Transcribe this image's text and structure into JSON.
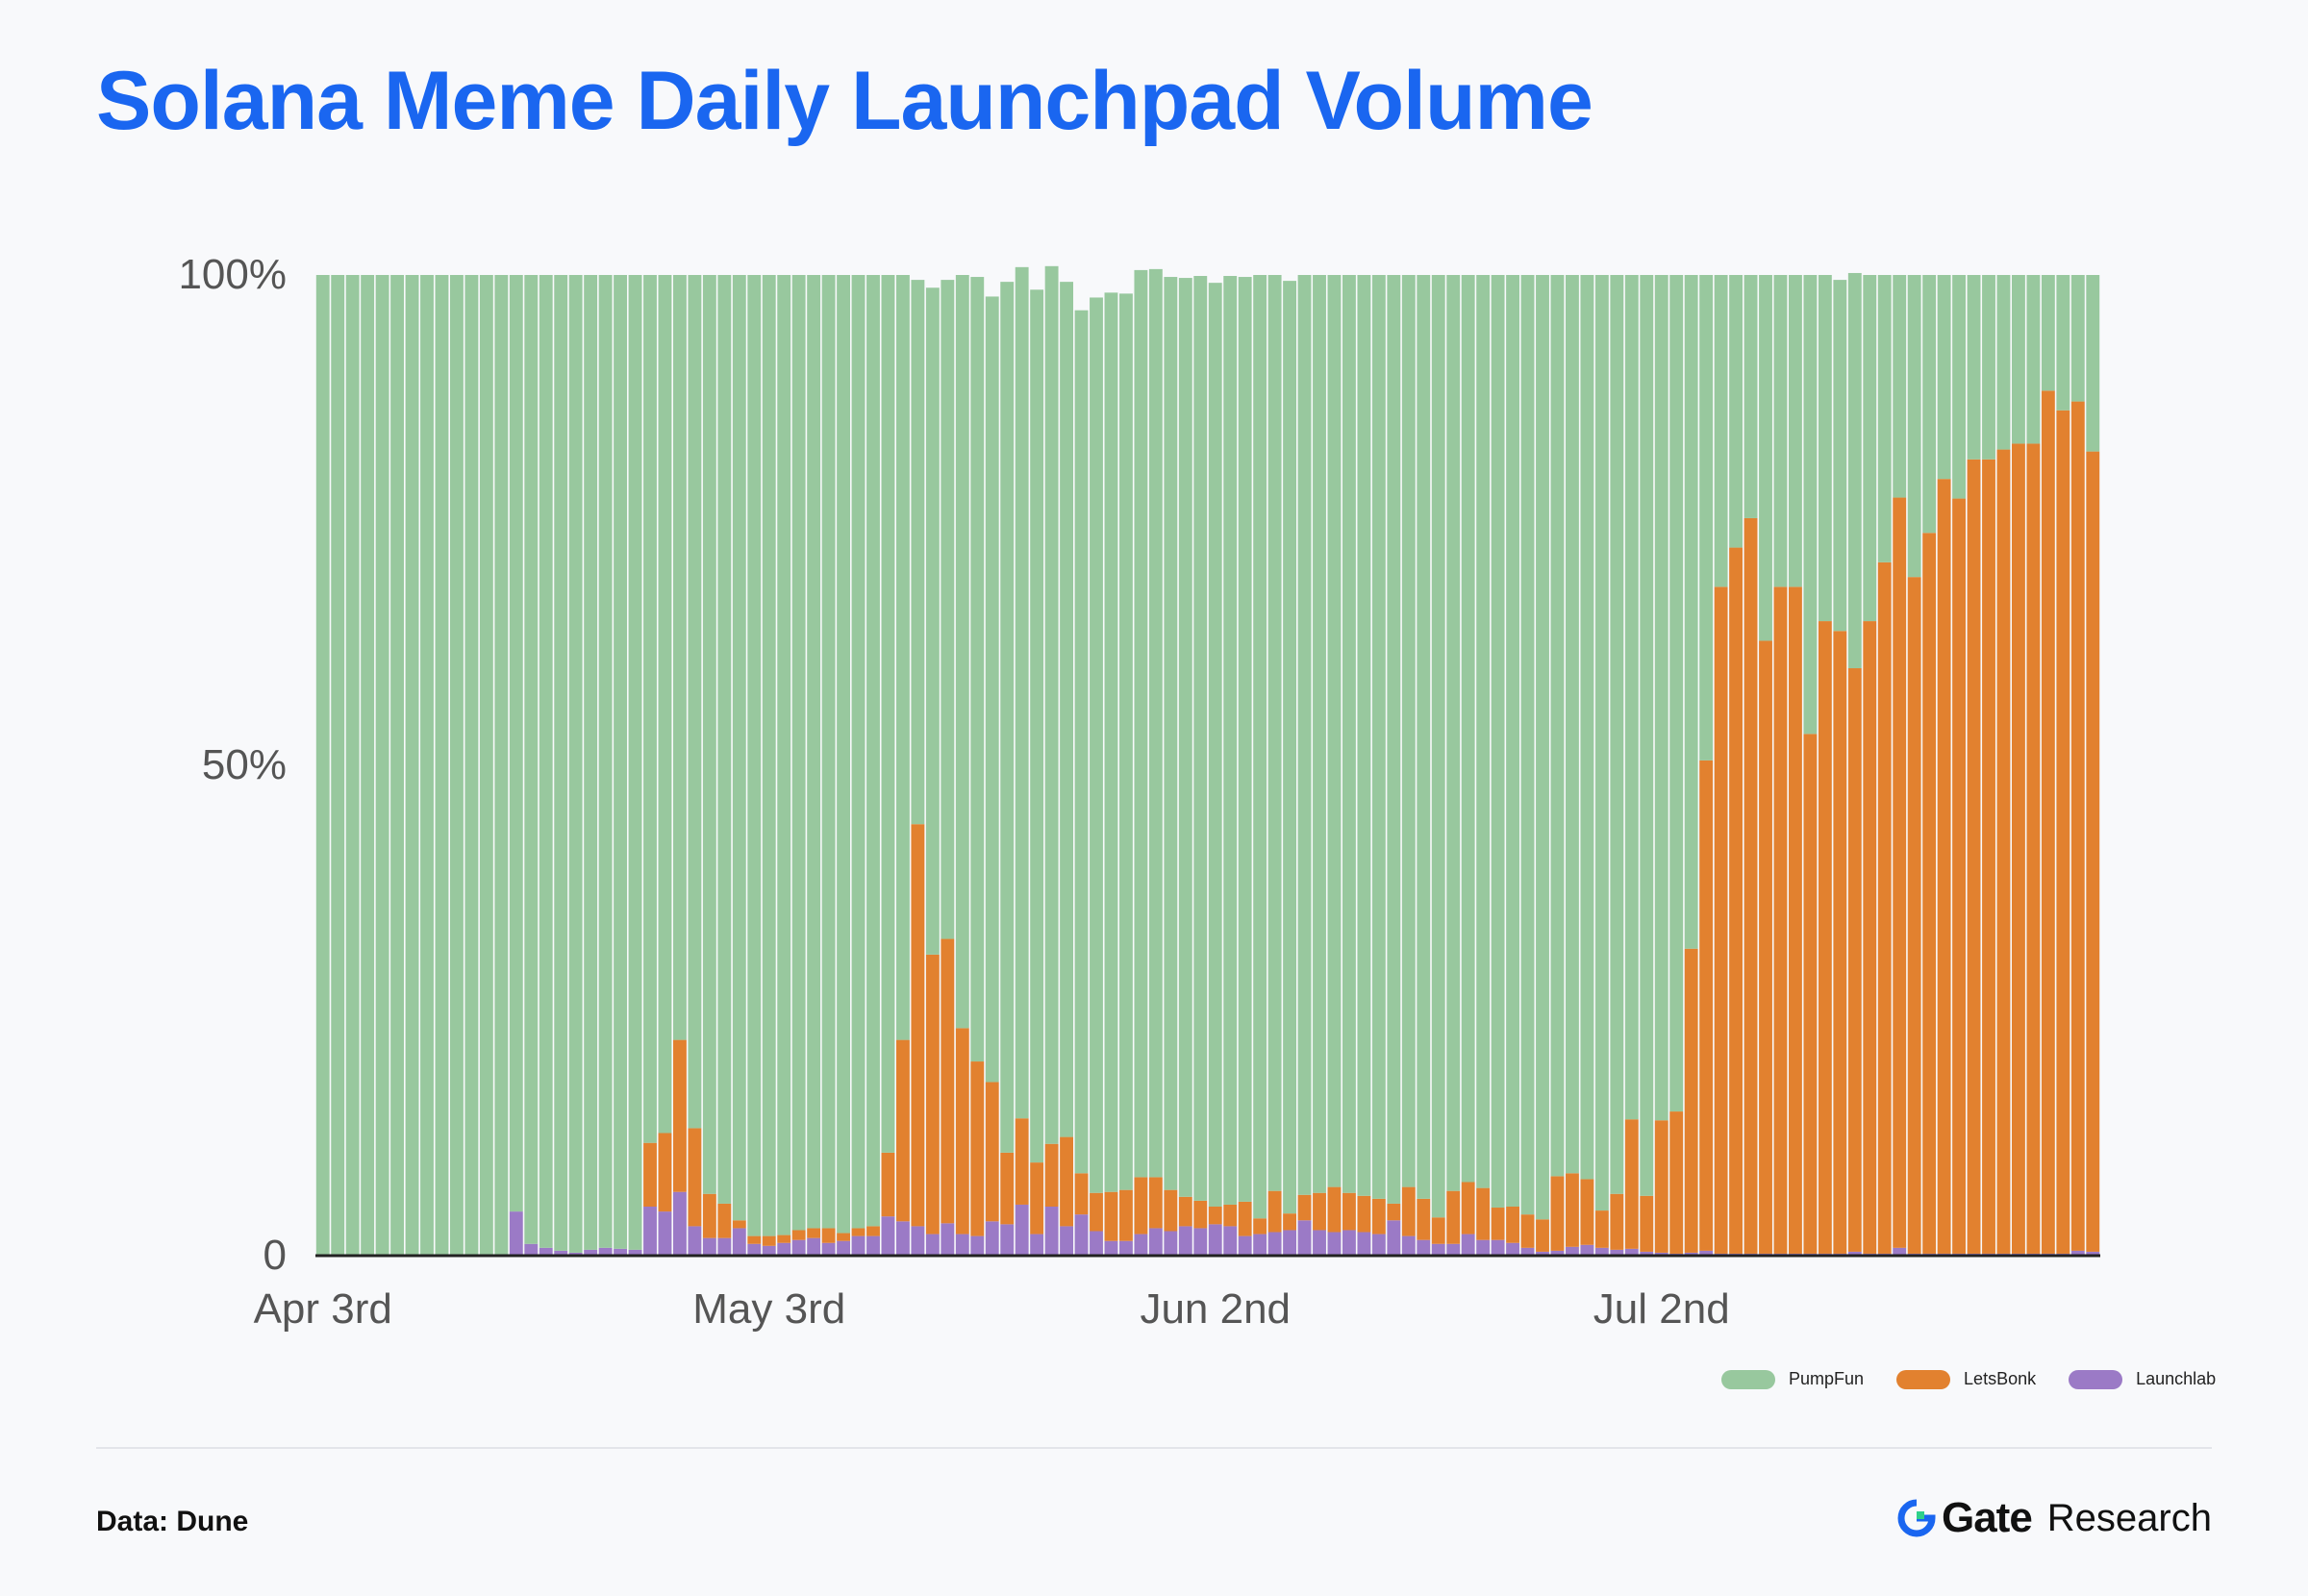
{
  "title": "Solana Meme Daily Launchpad Volume",
  "source_label": "Data: Dune",
  "brand": {
    "name": "Gate",
    "suffix": "Research"
  },
  "legend": [
    {
      "label": "PumpFun",
      "color": "#98c89e"
    },
    {
      "label": "LetsBonk",
      "color": "#e2812f"
    },
    {
      "label": "Launchlab",
      "color": "#9b7ac6"
    }
  ],
  "chart_data": {
    "type": "bar",
    "stacked": true,
    "normalized": true,
    "title": "Solana Meme Daily Launchpad Volume",
    "ylim": [
      0,
      100
    ],
    "y_ticks": [
      {
        "value": 0,
        "label": "0"
      },
      {
        "value": 50,
        "label": "50%"
      },
      {
        "value": 100,
        "label": "100%"
      }
    ],
    "x_ticks": [
      {
        "index": 0,
        "label": "Apr 3rd"
      },
      {
        "index": 30,
        "label": "May 3rd"
      },
      {
        "index": 60,
        "label": "Jun 2nd"
      },
      {
        "index": 90,
        "label": "Jul 2nd"
      }
    ],
    "num_days": 120,
    "grid": false,
    "legend_position": "bottom-right",
    "series": [
      {
        "name": "Launchlab",
        "color": "#9b7ac6",
        "values": [
          0,
          0,
          0,
          0,
          0,
          0,
          0,
          0,
          0,
          0,
          0,
          0,
          0,
          4.5,
          1.2,
          0.8,
          0.5,
          0.3,
          0.6,
          0.8,
          0.7,
          0.6,
          5,
          4.5,
          6.5,
          3,
          1.8,
          1.8,
          2.8,
          1.2,
          1,
          1.3,
          1.6,
          1.8,
          1.3,
          1.5,
          2,
          2,
          4,
          3.5,
          3,
          2.2,
          3.3,
          2.2,
          2,
          3.5,
          3.2,
          5.2,
          2.2,
          5,
          3,
          4.2,
          2.5,
          1.5,
          1.5,
          2.2,
          2.8,
          2.5,
          3,
          2.8,
          3.2,
          3,
          2,
          2.2,
          2.4,
          2.6,
          3.6,
          2.6,
          2.4,
          2.6,
          2.4,
          2.2,
          3.6,
          2,
          1.6,
          1.2,
          1.2,
          2.2,
          1.6,
          1.6,
          1.3,
          0.8,
          0.4,
          0.5,
          0.9,
          1.1,
          0.8,
          0.6,
          0.7,
          0.4,
          0.3,
          0.2,
          0.3,
          0.5,
          0.2,
          0.2,
          0.2,
          0.2,
          0.2,
          0.2,
          0.2,
          0.2,
          0.2,
          0.4,
          0.2,
          0.2,
          0.8,
          0.2,
          0.2,
          0.2,
          0.2,
          0.2,
          0.2,
          0.2,
          0.2,
          0.2,
          0.2,
          0.2,
          0.5,
          0.4
        ]
      },
      {
        "name": "LetsBonk",
        "color": "#e2812f",
        "values": [
          0,
          0,
          0,
          0,
          0,
          0,
          0,
          0,
          0,
          0,
          0,
          0,
          0,
          0,
          0,
          0,
          0,
          0,
          0,
          0,
          0,
          0,
          6.5,
          8,
          15.5,
          10,
          4.5,
          3.5,
          0.8,
          0.8,
          1,
          0.8,
          1,
          1,
          1.5,
          0.8,
          0.8,
          1,
          6.5,
          18.5,
          41,
          28.5,
          29,
          21,
          17.8,
          14.2,
          7.3,
          8.8,
          7.3,
          6.4,
          9.1,
          4.2,
          3.9,
          5,
          5.2,
          5.8,
          5.2,
          4.2,
          3,
          2.8,
          1.8,
          2.2,
          3.5,
          1.6,
          4.2,
          1.7,
          2.6,
          3.8,
          4.6,
          3.8,
          3.7,
          3.6,
          1.7,
          5,
          4.2,
          2.7,
          5.4,
          5.3,
          5.3,
          3.3,
          3.7,
          3.4,
          3.3,
          7.6,
          7.5,
          6.7,
          3.8,
          5.7,
          13.2,
          5.7,
          13.5,
          14.5,
          31,
          50,
          68,
          72,
          75,
          62.5,
          68,
          68,
          53,
          64.5,
          63.5,
          59.5,
          64.5,
          70.5,
          76.5,
          69,
          73.5,
          79,
          77,
          81,
          81,
          82,
          82.6,
          82.6,
          88,
          86,
          86.6,
          81.6
        ]
      },
      {
        "name": "PumpFun",
        "color": "#98c89e",
        "values": [
          100,
          100,
          100,
          100,
          100,
          100,
          100,
          100,
          100,
          100,
          100,
          100,
          100,
          95.5,
          98.8,
          99.2,
          99.5,
          99.7,
          99.4,
          99.2,
          99.3,
          99.4,
          88.5,
          87.5,
          78,
          87,
          93.7,
          94.7,
          96.4,
          98,
          98,
          97.9,
          97.4,
          97.2,
          97.2,
          97.7,
          97.2,
          97,
          89.5,
          78,
          55.5,
          68,
          67.2,
          76.8,
          80,
          80.1,
          88.8,
          86.8,
          89,
          89.5,
          87.2,
          88,
          91.3,
          91.7,
          91.4,
          92.5,
          92.6,
          93.1,
          93.7,
          94.3,
          94.2,
          94.7,
          94.3,
          96.2,
          93.4,
          95.1,
          93.8,
          93.6,
          93,
          93.6,
          93.9,
          94.2,
          94.7,
          93,
          94.2,
          96.1,
          93.4,
          92.5,
          93.1,
          95.1,
          95,
          95.8,
          96.3,
          91.9,
          91.6,
          92.2,
          95.4,
          93.7,
          86.1,
          93.9,
          86.2,
          85.3,
          68.7,
          49.5,
          31.8,
          27.8,
          24.8,
          37.3,
          31.8,
          31.8,
          46.8,
          35.3,
          35.8,
          40.3,
          35.3,
          29.3,
          22.7,
          30.8,
          26.3,
          20.8,
          22.8,
          18.8,
          18.8,
          17.8,
          17.2,
          17.2,
          11.8,
          13.8,
          12.9,
          18
        ]
      }
    ]
  }
}
